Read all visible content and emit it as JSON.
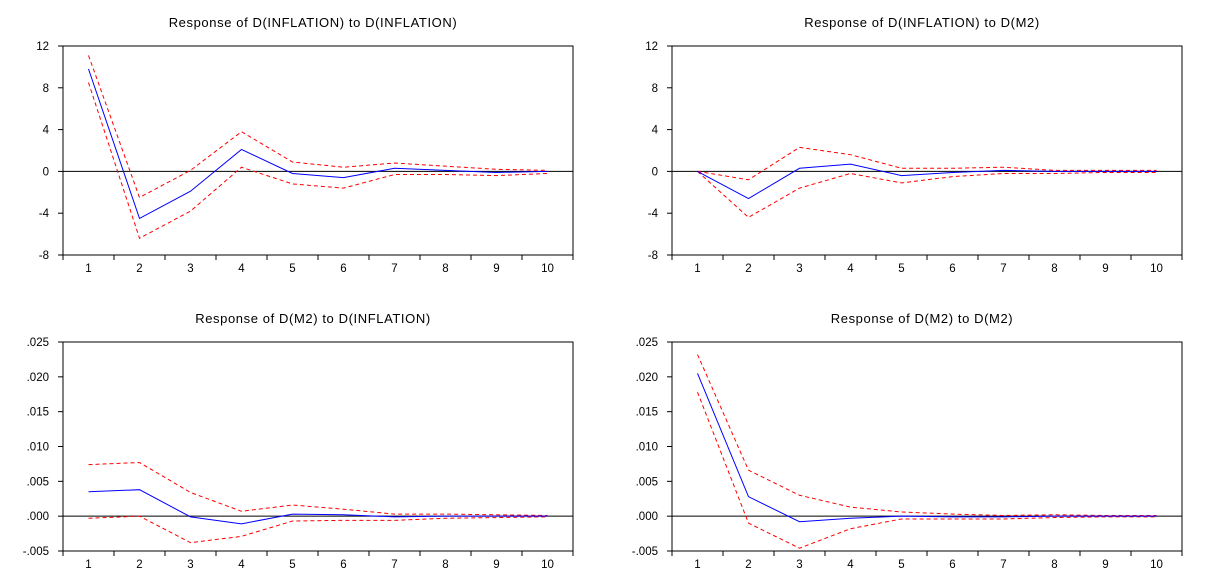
{
  "chart_data": [
    {
      "type": "line",
      "title": "Response of D(INFLATION) to D(INFLATION)",
      "x": [
        1,
        2,
        3,
        4,
        5,
        6,
        7,
        8,
        9,
        10
      ],
      "x_tick_labels": [
        "1",
        "2",
        "3",
        "4",
        "5",
        "6",
        "7",
        "8",
        "9",
        "10"
      ],
      "y_tick_labels": [
        "12",
        "8",
        "4",
        "0",
        "-4",
        "-8"
      ],
      "y_ticks": [
        12,
        8,
        4,
        0,
        -4,
        -8
      ],
      "ylim": [
        -8,
        12
      ],
      "zero_line": true,
      "series": [
        {
          "role": "response",
          "color": "#0000ff",
          "style": "solid",
          "values": [
            9.8,
            -4.5,
            -1.9,
            2.1,
            -0.2,
            -0.6,
            0.3,
            0.1,
            -0.1,
            0.0
          ]
        },
        {
          "role": "upper_band",
          "color": "#ff0000",
          "style": "dashed",
          "values": [
            11.1,
            -2.5,
            0.1,
            3.8,
            0.9,
            0.4,
            0.8,
            0.5,
            0.2,
            0.1
          ]
        },
        {
          "role": "lower_band",
          "color": "#ff0000",
          "style": "dashed",
          "values": [
            8.5,
            -6.4,
            -3.8,
            0.4,
            -1.2,
            -1.6,
            -0.3,
            -0.3,
            -0.4,
            -0.2
          ]
        }
      ]
    },
    {
      "type": "line",
      "title": "Response of D(INFLATION) to D(M2)",
      "x": [
        1,
        2,
        3,
        4,
        5,
        6,
        7,
        8,
        9,
        10
      ],
      "x_tick_labels": [
        "1",
        "2",
        "3",
        "4",
        "5",
        "6",
        "7",
        "8",
        "9",
        "10"
      ],
      "y_tick_labels": [
        "12",
        "8",
        "4",
        "0",
        "-4",
        "-8"
      ],
      "y_ticks": [
        12,
        8,
        4,
        0,
        -4,
        -8
      ],
      "ylim": [
        -8,
        12
      ],
      "zero_line": true,
      "series": [
        {
          "role": "response",
          "color": "#0000ff",
          "style": "solid",
          "values": [
            0.0,
            -2.6,
            0.3,
            0.7,
            -0.4,
            -0.1,
            0.1,
            0.0,
            0.0,
            0.0
          ]
        },
        {
          "role": "upper_band",
          "color": "#ff0000",
          "style": "dashed",
          "values": [
            0.0,
            -0.8,
            2.3,
            1.6,
            0.3,
            0.3,
            0.4,
            0.1,
            0.1,
            0.1
          ]
        },
        {
          "role": "lower_band",
          "color": "#ff0000",
          "style": "dashed",
          "values": [
            0.0,
            -4.4,
            -1.6,
            -0.2,
            -1.1,
            -0.5,
            -0.2,
            -0.2,
            -0.1,
            -0.1
          ]
        }
      ]
    },
    {
      "type": "line",
      "title": "Response of D(M2) to D(INFLATION)",
      "x": [
        1,
        2,
        3,
        4,
        5,
        6,
        7,
        8,
        9,
        10
      ],
      "x_tick_labels": [
        "1",
        "2",
        "3",
        "4",
        "5",
        "6",
        "7",
        "8",
        "9",
        "10"
      ],
      "y_tick_labels": [
        ".025",
        ".020",
        ".015",
        ".010",
        ".005",
        ".000",
        "-.005"
      ],
      "y_ticks": [
        0.025,
        0.02,
        0.015,
        0.01,
        0.005,
        0,
        -0.005
      ],
      "ylim": [
        -0.005,
        0.025
      ],
      "zero_line": true,
      "series": [
        {
          "role": "response",
          "color": "#0000ff",
          "style": "solid",
          "values": [
            0.0035,
            0.0038,
            -0.0001,
            -0.0011,
            0.0003,
            0.0002,
            -0.0001,
            0.0,
            0.0,
            0.0
          ]
        },
        {
          "role": "upper_band",
          "color": "#ff0000",
          "style": "dashed",
          "values": [
            0.0074,
            0.0077,
            0.0034,
            0.0007,
            0.0016,
            0.001,
            0.0003,
            0.0003,
            0.0002,
            0.0001
          ]
        },
        {
          "role": "lower_band",
          "color": "#ff0000",
          "style": "dashed",
          "values": [
            -0.0003,
            0.0,
            -0.0038,
            -0.0029,
            -0.0007,
            -0.0006,
            -0.0006,
            -0.0003,
            -0.0002,
            -0.0001
          ]
        }
      ]
    },
    {
      "type": "line",
      "title": "Response of D(M2) to D(M2)",
      "x": [
        1,
        2,
        3,
        4,
        5,
        6,
        7,
        8,
        9,
        10
      ],
      "x_tick_labels": [
        "1",
        "2",
        "3",
        "4",
        "5",
        "6",
        "7",
        "8",
        "9",
        "10"
      ],
      "y_tick_labels": [
        ".025",
        ".020",
        ".015",
        ".010",
        ".005",
        ".000",
        "-.005"
      ],
      "y_ticks": [
        0.025,
        0.02,
        0.015,
        0.01,
        0.005,
        0,
        -0.005
      ],
      "ylim": [
        -0.005,
        0.025
      ],
      "zero_line": true,
      "series": [
        {
          "role": "response",
          "color": "#0000ff",
          "style": "solid",
          "values": [
            0.0205,
            0.0028,
            -0.0008,
            -0.0003,
            0.0,
            -0.0001,
            -0.0001,
            0.0,
            0.0,
            0.0
          ]
        },
        {
          "role": "upper_band",
          "color": "#ff0000",
          "style": "dashed",
          "values": [
            0.0232,
            0.0066,
            0.003,
            0.0013,
            0.0006,
            0.0003,
            0.0001,
            0.0002,
            0.0001,
            0.0001
          ]
        },
        {
          "role": "lower_band",
          "color": "#ff0000",
          "style": "dashed",
          "values": [
            0.0178,
            -0.001,
            -0.0046,
            -0.0018,
            -0.0004,
            -0.0004,
            -0.0004,
            -0.0002,
            -0.0001,
            -0.0001
          ]
        }
      ]
    }
  ]
}
